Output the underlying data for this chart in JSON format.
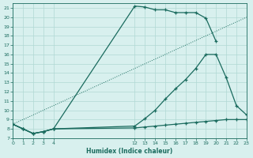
{
  "xlabel": "Humidex (Indice chaleur)",
  "background_color": "#d8f0ee",
  "grid_color": "#b0d8d4",
  "line_color": "#1a6b5e",
  "xlim": [
    0,
    23
  ],
  "ylim": [
    7,
    21.5
  ],
  "xticks": [
    0,
    1,
    2,
    3,
    4,
    12,
    13,
    14,
    15,
    16,
    17,
    18,
    19,
    20,
    21,
    22,
    23
  ],
  "yticks": [
    7,
    8,
    9,
    10,
    11,
    12,
    13,
    14,
    15,
    16,
    17,
    18,
    19,
    20,
    21
  ],
  "line1_x": [
    0,
    1,
    2,
    3,
    4,
    12,
    13,
    14,
    15,
    16,
    17,
    18,
    19,
    20
  ],
  "line1_y": [
    8.5,
    8.0,
    7.5,
    7.7,
    8.0,
    21.2,
    21.1,
    20.8,
    20.8,
    20.5,
    20.5,
    20.5,
    19.9,
    17.4
  ],
  "line2_x": [
    0,
    1,
    2,
    3,
    4,
    12,
    13,
    14,
    15,
    16,
    17,
    18,
    19,
    20,
    21,
    22,
    23
  ],
  "line2_y": [
    8.5,
    8.0,
    7.5,
    7.7,
    8.0,
    8.3,
    9.1,
    10.0,
    11.2,
    12.3,
    13.3,
    14.5,
    16.0,
    16.0,
    13.5,
    10.5,
    9.5
  ],
  "line3_x": [
    0,
    1,
    2,
    3,
    4,
    12,
    13,
    14,
    15,
    16,
    17,
    18,
    19,
    20,
    21,
    22,
    23
  ],
  "line3_y": [
    8.5,
    8.0,
    7.5,
    7.7,
    8.0,
    8.1,
    8.2,
    8.3,
    8.4,
    8.5,
    8.6,
    8.7,
    8.8,
    8.9,
    9.0,
    9.0,
    9.0
  ]
}
